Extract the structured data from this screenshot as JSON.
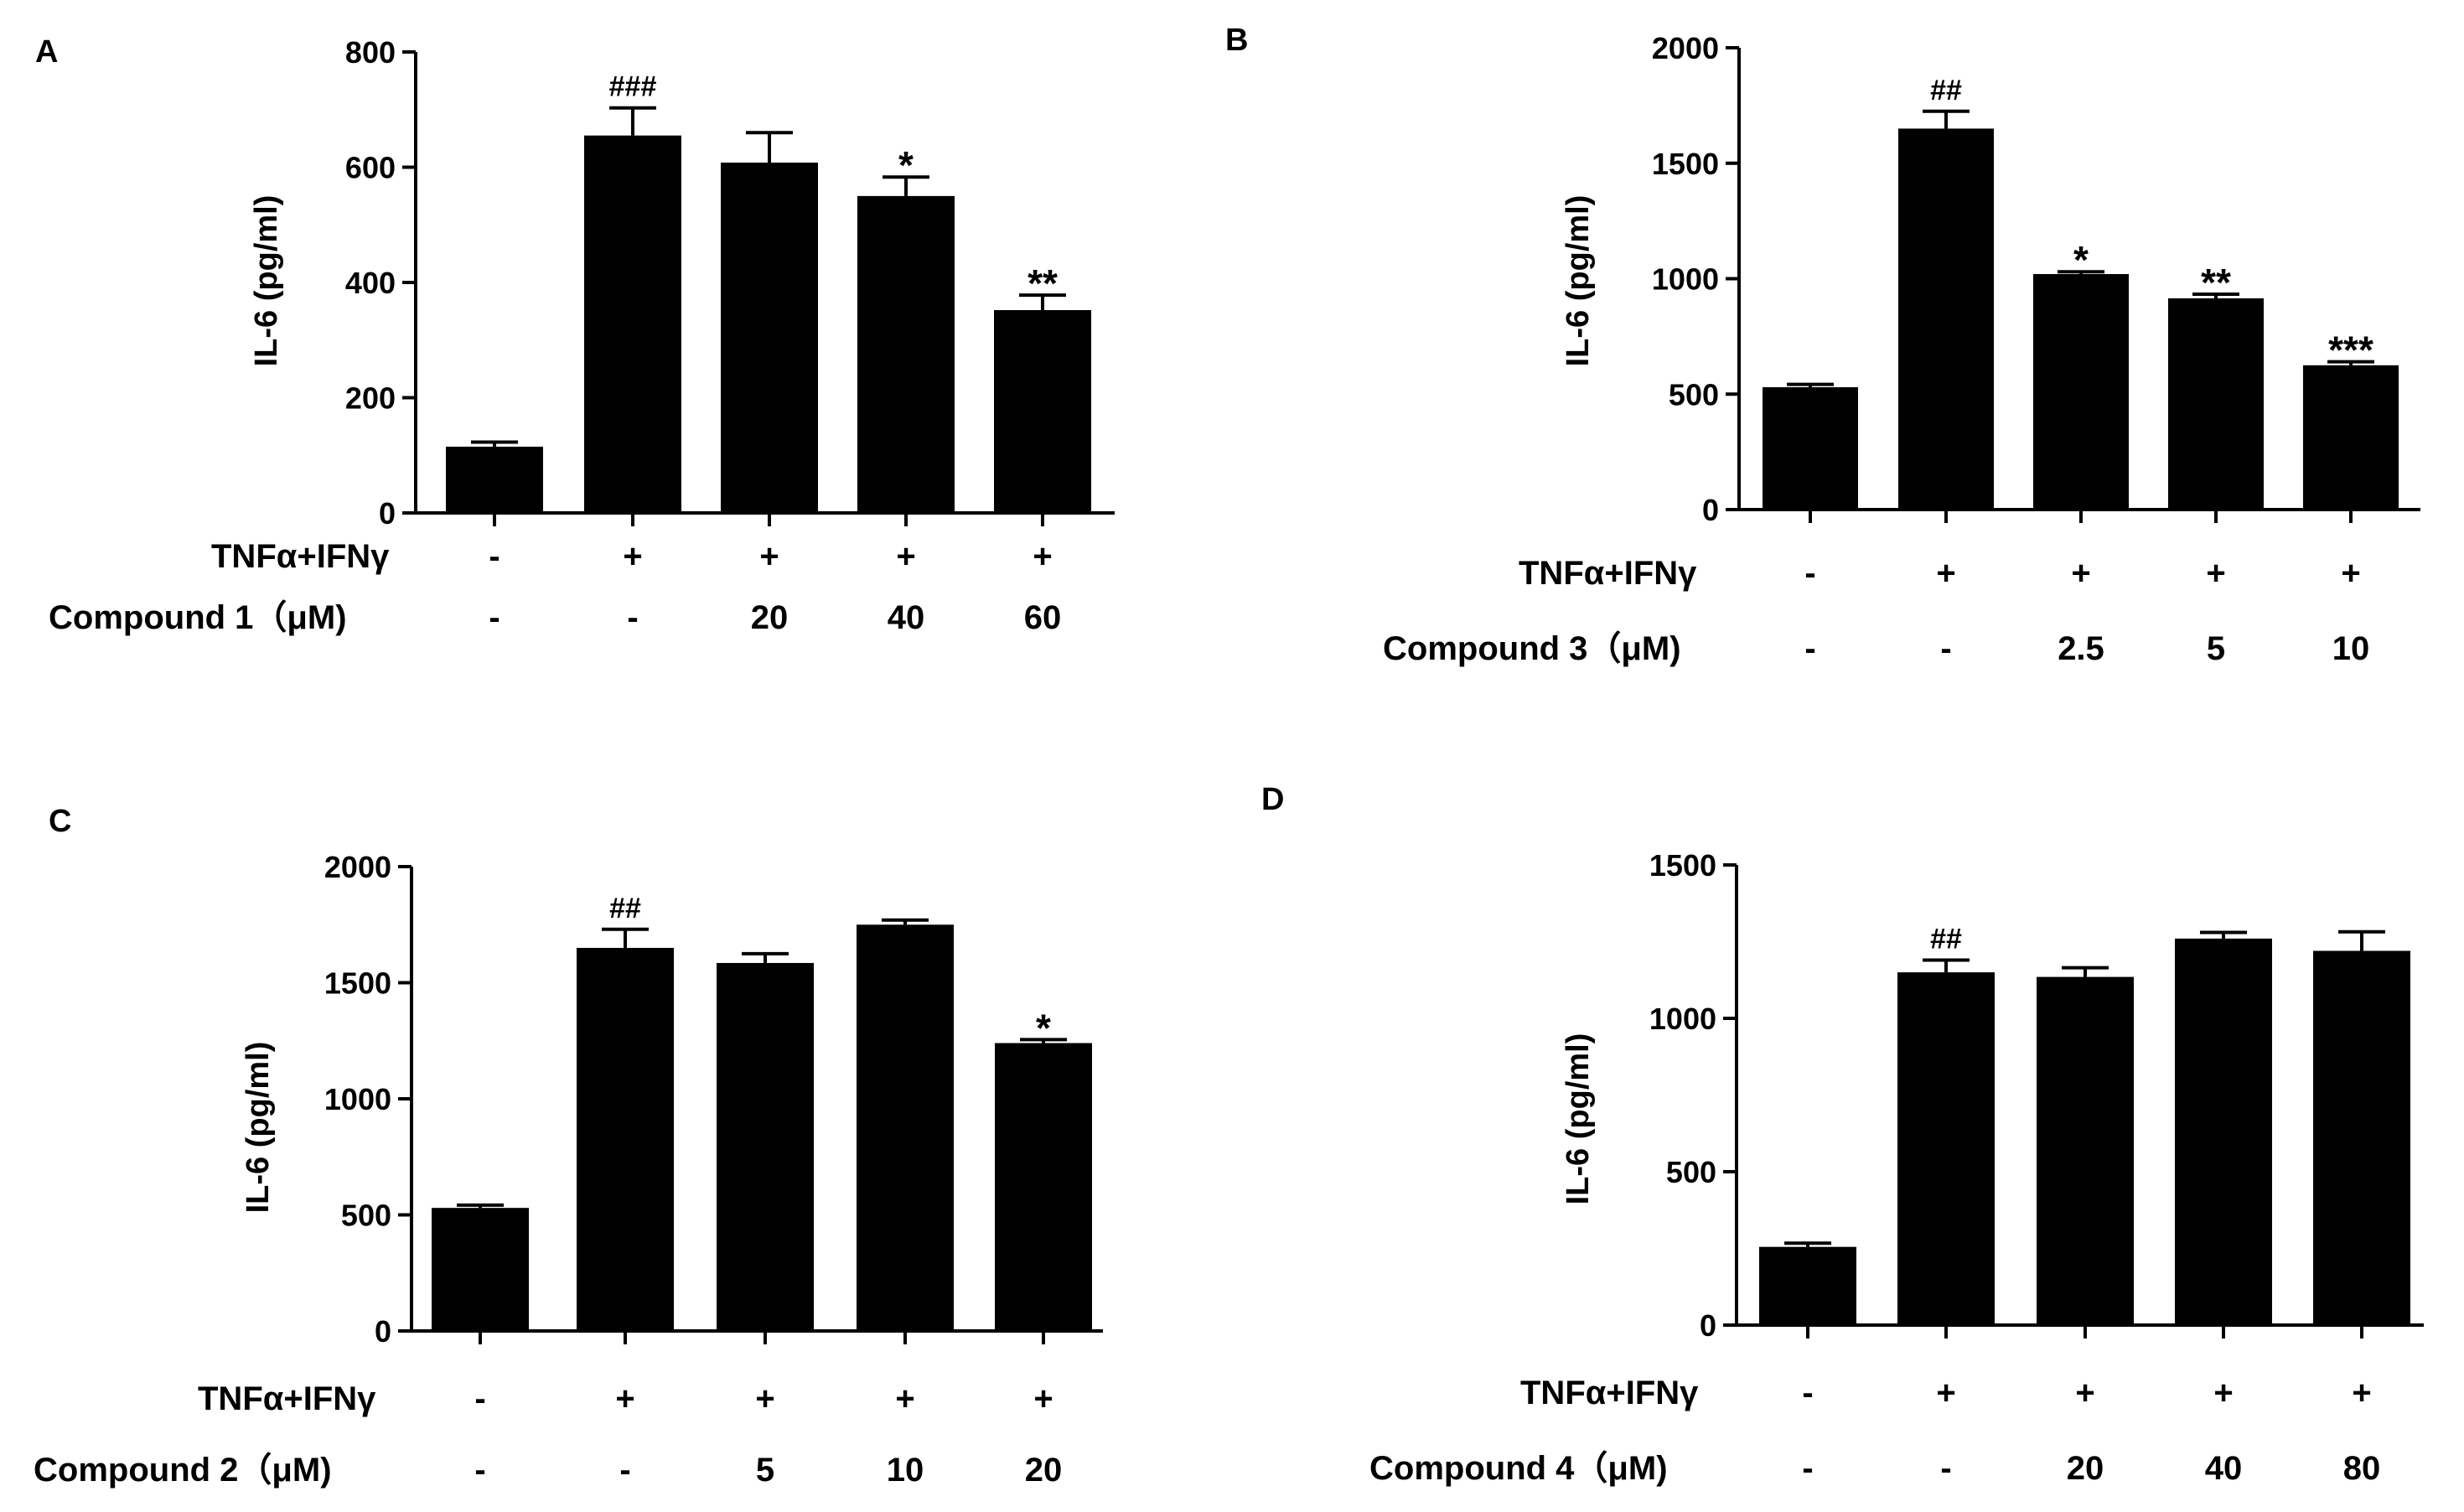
{
  "colors": {
    "bar": "#000000",
    "axis": "#000000",
    "background": "#ffffff"
  },
  "chart_data": [
    {
      "panel": "A",
      "type": "bar",
      "ylabel": "IL-6 (pg/ml)",
      "ylim": [
        0,
        800
      ],
      "yticks": [
        0,
        200,
        400,
        600,
        800
      ],
      "ytick_labels": [
        "0",
        "200",
        "400",
        "600",
        "800"
      ],
      "values": [
        115,
        655,
        608,
        550,
        352
      ],
      "errors": [
        8,
        48,
        52,
        33,
        26
      ],
      "annotations": [
        "",
        "###",
        "",
        "*",
        "**"
      ],
      "rows": [
        {
          "label": "TNFα+IFNγ",
          "values": [
            "-",
            "+",
            "+",
            "+",
            "+"
          ]
        },
        {
          "label": "Compound 1（μM)",
          "values": [
            "-",
            "-",
            "20",
            "40",
            "60"
          ]
        }
      ]
    },
    {
      "panel": "B",
      "type": "bar",
      "ylabel": "IL-6 (pg/ml)",
      "ylim": [
        0,
        2000
      ],
      "yticks": [
        0,
        500,
        1000,
        1500,
        2000
      ],
      "ytick_labels": [
        "0",
        "500",
        "1000",
        "1500",
        "2000"
      ],
      "values": [
        530,
        1650,
        1020,
        915,
        625
      ],
      "errors": [
        12,
        75,
        10,
        18,
        15
      ],
      "annotations": [
        "",
        "##",
        "*",
        "**",
        "***"
      ],
      "rows": [
        {
          "label": "TNFα+IFNγ",
          "values": [
            "-",
            "+",
            "+",
            "+",
            "+"
          ]
        },
        {
          "label": "Compound 3（μM)",
          "values": [
            "-",
            "-",
            "2.5",
            "5",
            "10"
          ]
        }
      ]
    },
    {
      "panel": "C",
      "type": "bar",
      "ylabel": "IL-6 (pg/ml)",
      "ylim": [
        0,
        2000
      ],
      "yticks": [
        0,
        500,
        1000,
        1500,
        2000
      ],
      "ytick_labels": [
        "0",
        "500",
        "1000",
        "1500",
        "2000"
      ],
      "values": [
        530,
        1650,
        1585,
        1750,
        1240
      ],
      "errors": [
        12,
        80,
        40,
        20,
        15
      ],
      "annotations": [
        "",
        "##",
        "",
        "",
        "*"
      ],
      "rows": [
        {
          "label": "TNFα+IFNγ",
          "values": [
            "-",
            "+",
            "+",
            "+",
            "+"
          ]
        },
        {
          "label": "Compound 2（μM)",
          "values": [
            "-",
            "-",
            "5",
            "10",
            "20"
          ]
        }
      ]
    },
    {
      "panel": "D",
      "type": "bar",
      "ylabel": "IL-6 (pg/ml)",
      "ylim": [
        0,
        1500
      ],
      "yticks": [
        0,
        500,
        1000,
        1500
      ],
      "ytick_labels": [
        "0",
        "500",
        "1000",
        "1500"
      ],
      "values": [
        255,
        1150,
        1135,
        1260,
        1220
      ],
      "errors": [
        12,
        40,
        30,
        20,
        62
      ],
      "annotations": [
        "",
        "##",
        "",
        "",
        ""
      ],
      "rows": [
        {
          "label": "TNFα+IFNγ",
          "values": [
            "-",
            "+",
            "+",
            "+",
            "+"
          ]
        },
        {
          "label": "Compound 4（μM)",
          "values": [
            "-",
            "-",
            "20",
            "40",
            "80"
          ]
        }
      ]
    }
  ]
}
